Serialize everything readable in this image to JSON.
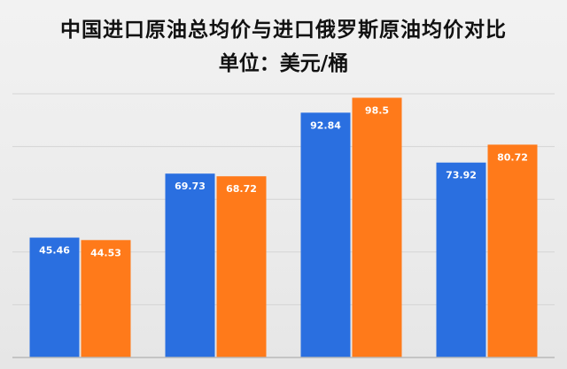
{
  "chart_data": {
    "type": "bar",
    "title": "中国进口原油总均价与进口俄罗斯原油均价对比",
    "subtitle": "单位：美元/桶",
    "categories": [
      "",
      "",
      "",
      ""
    ],
    "series": [
      {
        "values": [
          45.46,
          69.73,
          92.84,
          73.92
        ],
        "labels": [
          "45.46",
          "69.73",
          "92.84",
          "73.92"
        ]
      },
      {
        "values": [
          44.53,
          68.72,
          98.5,
          80.72
        ],
        "labels": [
          "44.53",
          "68.72",
          "98.5",
          "80.72"
        ]
      }
    ],
    "ylim": [
      0,
      100
    ],
    "grid": true,
    "colors": [
      "#2a6fe0",
      "#ff7a1a"
    ]
  }
}
